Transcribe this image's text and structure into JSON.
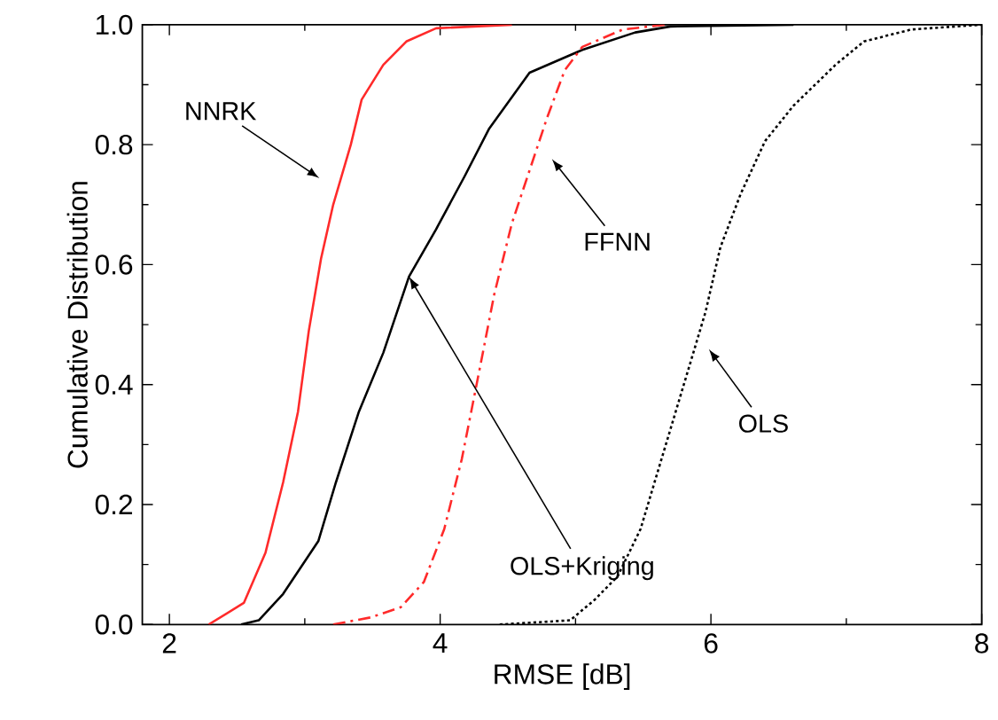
{
  "chart_data": {
    "type": "line",
    "xlabel": "RMSE [dB]",
    "ylabel": "Cumulative Distribution",
    "xlim": [
      1.8,
      8
    ],
    "ylim": [
      0,
      1
    ],
    "xticks": [
      2,
      4,
      6,
      8
    ],
    "yticks": [
      {
        "value": 0,
        "label": "0.0"
      },
      {
        "value": 0.2,
        "label": "0.2"
      },
      {
        "value": 0.4,
        "label": "0.4"
      },
      {
        "value": 0.6,
        "label": "0.6"
      },
      {
        "value": 0.8,
        "label": "0.8"
      },
      {
        "value": 1,
        "label": "1.0"
      }
    ],
    "grid": false,
    "series": [
      {
        "color": "#ff2a2a",
        "line_style": "solid",
        "x": [
          2.29,
          2.55,
          2.71,
          2.84,
          2.95,
          3.03,
          3.12,
          3.21,
          3.34,
          3.42,
          3.58,
          3.75,
          3.97,
          4.53
        ],
        "values": [
          0,
          0.036,
          0.12,
          0.237,
          0.355,
          0.49,
          0.61,
          0.7,
          0.8,
          0.875,
          0.933,
          0.972,
          0.994,
          1.0
        ]
      },
      {
        "color": "#000000",
        "line_style": "solid",
        "x": [
          2.53,
          2.66,
          2.84,
          3.1,
          3.23,
          3.4,
          3.58,
          3.77,
          3.97,
          4.18,
          4.36,
          4.66,
          5.05,
          5.44,
          5.7,
          6.61
        ],
        "values": [
          0,
          0.007,
          0.051,
          0.139,
          0.237,
          0.355,
          0.453,
          0.58,
          0.659,
          0.747,
          0.826,
          0.92,
          0.958,
          0.987,
          0.997,
          1.0
        ]
      },
      {
        "color": "#ff2a2a",
        "line_style": "dashed",
        "x": [
          3.21,
          3.49,
          3.71,
          3.88,
          4.03,
          4.16,
          4.29,
          4.4,
          4.53,
          4.66,
          4.79,
          4.92,
          5.05,
          5.35,
          5.66
        ],
        "values": [
          0,
          0.012,
          0.029,
          0.071,
          0.159,
          0.276,
          0.424,
          0.551,
          0.669,
          0.757,
          0.845,
          0.924,
          0.963,
          0.992,
          1.0
        ]
      },
      {
        "color": "#000000",
        "line_style": "dotted",
        "x": [
          4.44,
          4.96,
          5.14,
          5.31,
          5.48,
          5.61,
          5.74,
          5.87,
          5.96,
          6.07,
          6.22,
          6.4,
          6.61,
          6.92,
          7.13,
          7.48,
          8.0
        ],
        "values": [
          0,
          0.007,
          0.041,
          0.08,
          0.159,
          0.257,
          0.355,
          0.453,
          0.521,
          0.629,
          0.718,
          0.806,
          0.865,
          0.933,
          0.972,
          0.992,
          1.0
        ]
      }
    ],
    "annotations": [
      "NNRK",
      "FFNN",
      {
        "text": "OLS+Kriging",
        "x": 3.77,
        "y": 0.58
      },
      "OLS"
    ]
  }
}
